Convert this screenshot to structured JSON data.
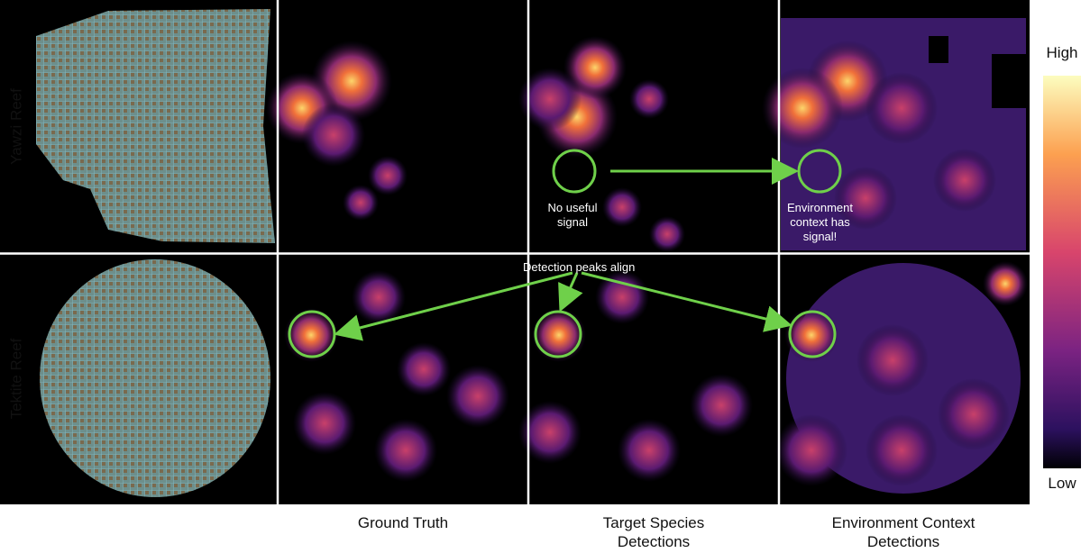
{
  "row_labels": [
    "Yawzi Reef",
    "Tektite Reef"
  ],
  "column_labels": [
    "Ground Truth",
    "Target Species Detections",
    "Environment Context Detections"
  ],
  "annotations": {
    "no_signal": "No useful signal",
    "has_signal": "Environment context has signal!",
    "peaks_align": "Detection peaks align"
  },
  "colorbar": {
    "high": "High",
    "low": "Low"
  }
}
